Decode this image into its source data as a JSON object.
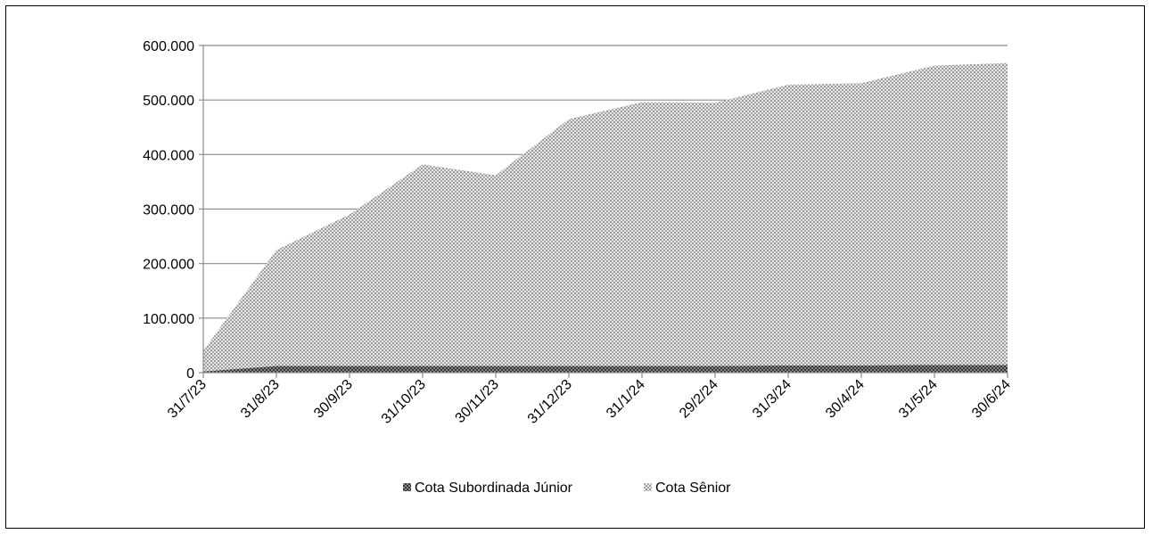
{
  "chart_data": {
    "type": "area",
    "stacked": true,
    "categories": [
      "31/7/23",
      "31/8/23",
      "30/9/23",
      "31/10/23",
      "30/11/23",
      "31/12/23",
      "31/1/24",
      "29/2/24",
      "31/3/24",
      "30/4/24",
      "31/5/24",
      "30/6/24"
    ],
    "series": [
      {
        "name": "Cota Subordinada Júnior",
        "values": [
          2000,
          12000,
          12000,
          12000,
          12000,
          12000,
          12000,
          12000,
          13000,
          13000,
          14000,
          14000
        ],
        "color": "#4a4a4a",
        "pattern": "checker"
      },
      {
        "name": "Cota Sênior",
        "values": [
          38000,
          213000,
          278000,
          370000,
          350000,
          453000,
          484000,
          483000,
          515000,
          518000,
          549000,
          554000
        ],
        "color": "#b8b8b8",
        "pattern": "dots"
      }
    ],
    "y_ticks": [
      "0",
      "100.000",
      "200.000",
      "300.000",
      "400.000",
      "500.000",
      "600.000"
    ],
    "ylim": [
      0,
      600000
    ],
    "grid": true,
    "legend_position": "bottom"
  }
}
